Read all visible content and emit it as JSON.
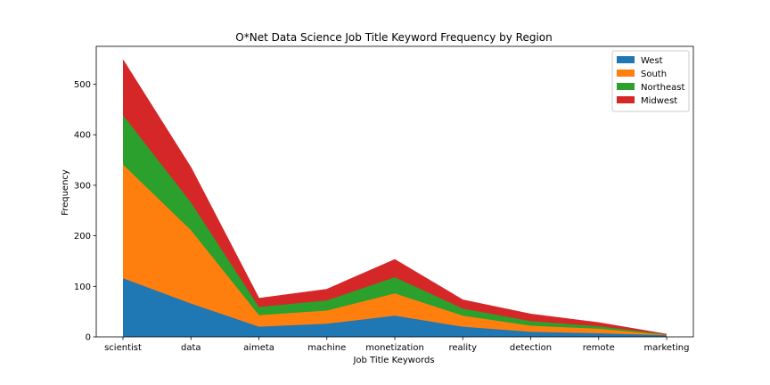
{
  "chart_data": {
    "type": "area",
    "stacked": true,
    "title": "O*Net Data Science Job Title Keyword Frequency by Region",
    "xlabel": "Job Title Keywords",
    "ylabel": "Frequency",
    "categories": [
      "scientist",
      "data",
      "aimeta",
      "machine",
      "monetization",
      "reality",
      "detection",
      "remote",
      "marketing"
    ],
    "ylim": [
      0,
      575
    ],
    "yticks": [
      0,
      100,
      200,
      300,
      400,
      500
    ],
    "grid": false,
    "legend_position": "top-right",
    "series": [
      {
        "name": "West",
        "color": "#1f77b4",
        "values": [
          116,
          66,
          20,
          26,
          42,
          20,
          10,
          7,
          3
        ]
      },
      {
        "name": "South",
        "color": "#ff7f0e",
        "values": [
          225,
          145,
          23,
          26,
          44,
          22,
          12,
          9,
          1
        ]
      },
      {
        "name": "Northeast",
        "color": "#2ca02c",
        "values": [
          98,
          55,
          16,
          20,
          32,
          14,
          9,
          5,
          1
        ]
      },
      {
        "name": "Midwest",
        "color": "#d62728",
        "values": [
          109,
          69,
          17,
          22,
          35,
          17,
          14,
          7,
          0
        ]
      }
    ]
  }
}
